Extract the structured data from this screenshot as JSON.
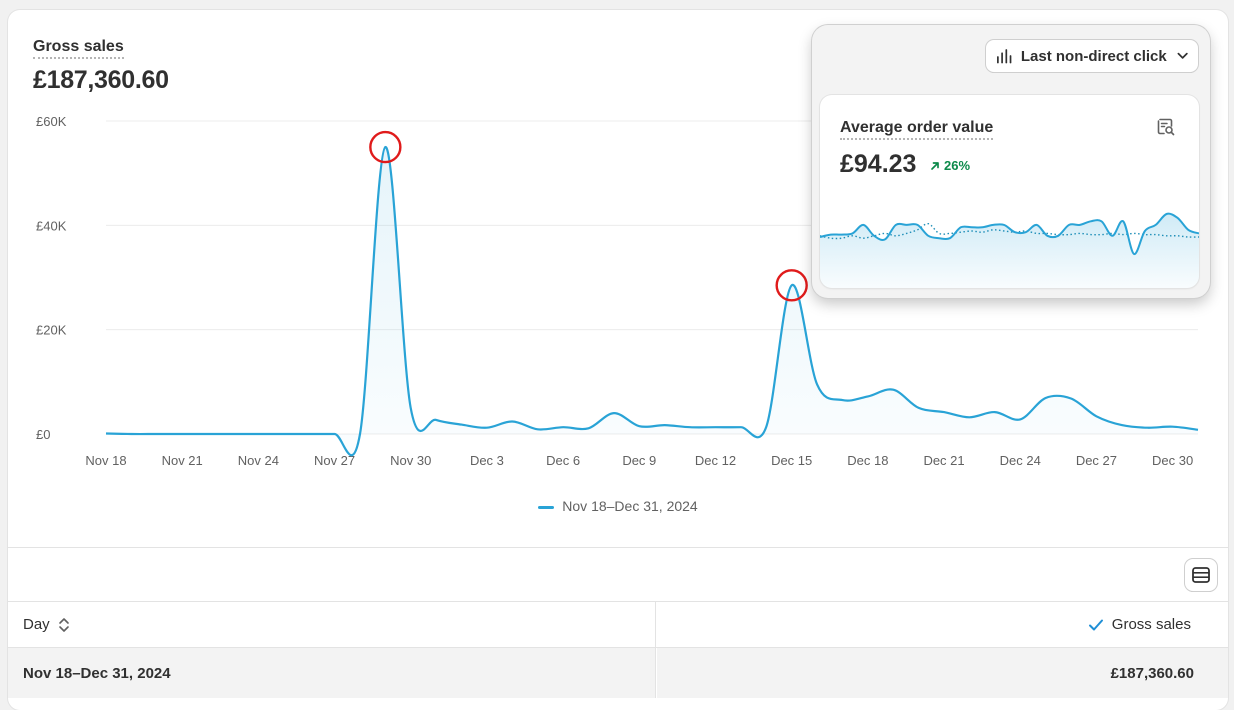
{
  "gross_sales": {
    "title": "Gross sales",
    "value": "£187,360.60"
  },
  "chart_data": {
    "type": "area",
    "title": "Gross sales",
    "y_ticks": [
      "£0",
      "£20K",
      "£40K",
      "£60K"
    ],
    "y_tick_values": [
      0,
      20000,
      40000,
      60000
    ],
    "ylim": [
      0,
      60000
    ],
    "x_ticks": [
      "Nov 18",
      "Nov 21",
      "Nov 24",
      "Nov 27",
      "Nov 30",
      "Dec 3",
      "Dec 6",
      "Dec 9",
      "Dec 12",
      "Dec 15",
      "Dec 18",
      "Dec 21",
      "Dec 24",
      "Dec 27",
      "Dec 30"
    ],
    "grid": true,
    "legend_position": "bottom-center",
    "series": [
      {
        "name": "Nov 18–Dec 31, 2024",
        "color": "#29a3d6",
        "x": [
          "Nov 18",
          "Nov 19",
          "Nov 20",
          "Nov 21",
          "Nov 22",
          "Nov 23",
          "Nov 24",
          "Nov 25",
          "Nov 26",
          "Nov 27",
          "Nov 28",
          "Nov 29",
          "Nov 30",
          "Dec 1",
          "Dec 2",
          "Dec 3",
          "Dec 4",
          "Dec 5",
          "Dec 6",
          "Dec 7",
          "Dec 8",
          "Dec 9",
          "Dec 10",
          "Dec 11",
          "Dec 12",
          "Dec 13",
          "Dec 14",
          "Dec 15",
          "Dec 16",
          "Dec 17",
          "Dec 18",
          "Dec 19",
          "Dec 20",
          "Dec 21",
          "Dec 22",
          "Dec 23",
          "Dec 24",
          "Dec 25",
          "Dec 26",
          "Dec 27",
          "Dec 28",
          "Dec 29",
          "Dec 30",
          "Dec 31"
        ],
        "values": [
          100,
          0,
          0,
          0,
          0,
          0,
          0,
          0,
          0,
          0,
          0,
          55000,
          5000,
          2700,
          1800,
          1200,
          2400,
          900,
          1300,
          1100,
          4000,
          1500,
          1700,
          1300,
          1300,
          1300,
          1400,
          28500,
          9500,
          6500,
          7200,
          8500,
          5000,
          4200,
          3200,
          4200,
          2800,
          6900,
          6800,
          3400,
          1700,
          1200,
          1400,
          800
        ]
      }
    ],
    "highlighted_points": [
      "Nov 29",
      "Dec 15"
    ]
  },
  "legend": {
    "label": "Nov 18–Dec 31, 2024"
  },
  "popup": {
    "attribution_button": {
      "icon": "bar-chart-icon",
      "label": "Last non-direct click",
      "chevron": "chevron-down-icon"
    },
    "aov": {
      "title": "Average order value",
      "value": "£94.23",
      "delta": "26%",
      "delta_color": "#0c8a4a",
      "icon": "report-search-icon",
      "sparkline": {
        "current": [
          94,
          96,
          96,
          97,
          104,
          95,
          92,
          104,
          104,
          104,
          95,
          93,
          93,
          102,
          102,
          102,
          104,
          104,
          98,
          98,
          104,
          95,
          95,
          104,
          104,
          107,
          107,
          95,
          107,
          80,
          99,
          104,
          113,
          110,
          100,
          97
        ],
        "previous": [
          95,
          93,
          93,
          95,
          93,
          95,
          97,
          95,
          97,
          100,
          105,
          97,
          97,
          98,
          99,
          98,
          100,
          99,
          98,
          99,
          97,
          97,
          96,
          96,
          97,
          96,
          96,
          97,
          96,
          97,
          96,
          96,
          95,
          95,
          94,
          94
        ]
      }
    }
  },
  "table": {
    "headers": {
      "day": "Day",
      "gross_sales": "Gross sales"
    },
    "rows": [
      {
        "day": "Nov 18–Dec 31, 2024",
        "gross_sales": "£187,360.60"
      }
    ],
    "toggle_icon": "table-view-icon"
  }
}
